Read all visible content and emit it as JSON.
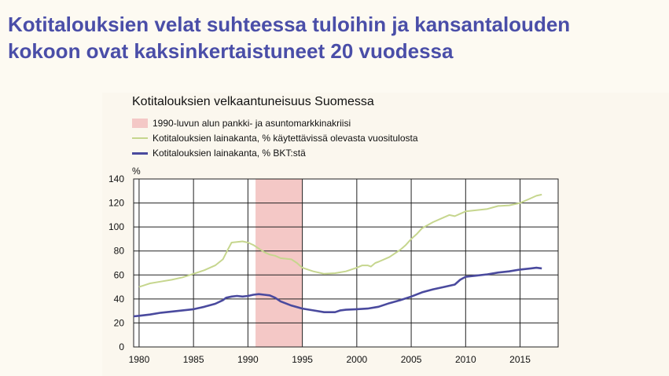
{
  "slide": {
    "title_line1": "Kotitalouksien velat suhteessa tuloihin ja kansantalouden",
    "title_line2": "kokoon ovat kaksinkertaistuneet 20 vuodessa"
  },
  "chart_data": {
    "type": "line",
    "title": "Kotitalouksien velkaantuneisuus Suomessa",
    "ylabel": "%",
    "xlim": [
      1979.5,
      2018.5
    ],
    "ylim": [
      0,
      140
    ],
    "yticks": [
      0,
      20,
      40,
      60,
      80,
      100,
      120,
      140
    ],
    "xticks": [
      1980,
      1985,
      1990,
      1995,
      2000,
      2005,
      2010,
      2015
    ],
    "grid": true,
    "legend_position": "top-left",
    "shaded_region": {
      "name": "1990-luvun alun pankki- ja asuntomarkkinakriisi",
      "x_start": 1990.7,
      "x_end": 1995.0,
      "color": "#f4c8c6"
    },
    "series": [
      {
        "name": "Kotitalouksien lainakanta, % käytettävissä olevasta vuositulosta",
        "color": "#c6d68e",
        "points": [
          [
            1980,
            50
          ],
          [
            1980.5,
            51.5
          ],
          [
            1981,
            53
          ],
          [
            1982,
            54.5
          ],
          [
            1983,
            56
          ],
          [
            1984,
            58
          ],
          [
            1985,
            61
          ],
          [
            1986,
            64
          ],
          [
            1987,
            68
          ],
          [
            1987.7,
            73
          ],
          [
            1988.2,
            82
          ],
          [
            1988.5,
            87
          ],
          [
            1989,
            87.5
          ],
          [
            1989.5,
            88
          ],
          [
            1990,
            87
          ],
          [
            1990.5,
            85
          ],
          [
            1991,
            82
          ],
          [
            1991.5,
            79
          ],
          [
            1992,
            77
          ],
          [
            1992.5,
            76
          ],
          [
            1993,
            74
          ],
          [
            1994,
            73
          ],
          [
            1994.5,
            70
          ],
          [
            1995,
            66
          ],
          [
            1996,
            63
          ],
          [
            1997,
            61
          ],
          [
            1998,
            61.5
          ],
          [
            1999,
            63
          ],
          [
            2000,
            66
          ],
          [
            2000.5,
            68
          ],
          [
            2001,
            68
          ],
          [
            2001.3,
            67
          ],
          [
            2001.7,
            70
          ],
          [
            2002,
            71
          ],
          [
            2003,
            75
          ],
          [
            2004,
            81
          ],
          [
            2004.5,
            85
          ],
          [
            2005,
            90
          ],
          [
            2005.5,
            94
          ],
          [
            2006,
            99
          ],
          [
            2007,
            104
          ],
          [
            2008,
            108
          ],
          [
            2008.5,
            110
          ],
          [
            2009,
            109
          ],
          [
            2009.5,
            111
          ],
          [
            2010,
            113
          ],
          [
            2011,
            114
          ],
          [
            2012,
            115
          ],
          [
            2013,
            117.5
          ],
          [
            2014,
            118
          ],
          [
            2015,
            120
          ],
          [
            2016,
            124
          ],
          [
            2016.5,
            126
          ],
          [
            2017,
            127
          ]
        ]
      },
      {
        "name": "Kotitalouksien lainakanta, % BKT:stä",
        "color": "#4a4a9e",
        "points": [
          [
            1979.5,
            25.5
          ],
          [
            1980,
            26
          ],
          [
            1981,
            27
          ],
          [
            1982,
            28.5
          ],
          [
            1983,
            29.5
          ],
          [
            1984,
            30.5
          ],
          [
            1985,
            31.5
          ],
          [
            1986,
            33.5
          ],
          [
            1987,
            36
          ],
          [
            1987.7,
            39
          ],
          [
            1988,
            41
          ],
          [
            1988.5,
            42
          ],
          [
            1989,
            42.5
          ],
          [
            1989.5,
            42
          ],
          [
            1990,
            42.5
          ],
          [
            1990.5,
            43.5
          ],
          [
            1991,
            44
          ],
          [
            1991.5,
            43.5
          ],
          [
            1992,
            43
          ],
          [
            1992.5,
            41
          ],
          [
            1993,
            38
          ],
          [
            1994,
            34.5
          ],
          [
            1995,
            32
          ],
          [
            1996,
            30.5
          ],
          [
            1997,
            29
          ],
          [
            1998,
            29
          ],
          [
            1998.5,
            30.5
          ],
          [
            1999,
            31
          ],
          [
            2000,
            31.5
          ],
          [
            2001,
            32
          ],
          [
            2002,
            33.5
          ],
          [
            2003,
            36.5
          ],
          [
            2004,
            39
          ],
          [
            2005,
            42
          ],
          [
            2006,
            45.5
          ],
          [
            2007,
            48
          ],
          [
            2008,
            50
          ],
          [
            2009,
            52
          ],
          [
            2009.5,
            56
          ],
          [
            2010,
            58.5
          ],
          [
            2011,
            59.5
          ],
          [
            2012,
            60.5
          ],
          [
            2013,
            62
          ],
          [
            2014,
            63
          ],
          [
            2015,
            64.5
          ],
          [
            2016,
            65.5
          ],
          [
            2016.5,
            66
          ],
          [
            2017,
            65.5
          ]
        ]
      }
    ]
  }
}
